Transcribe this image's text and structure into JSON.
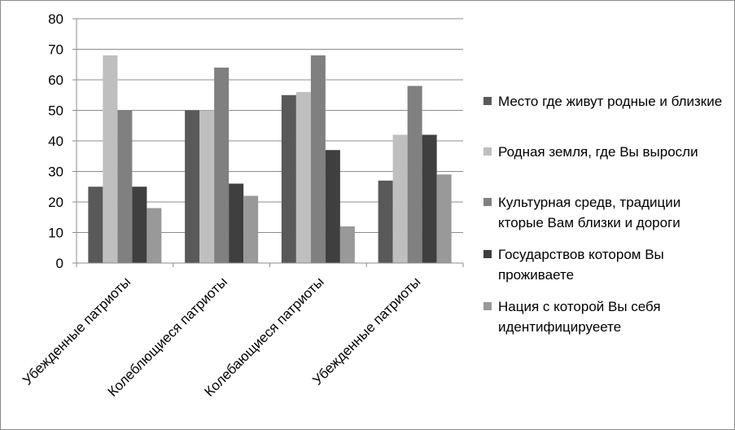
{
  "chart_data": {
    "type": "bar",
    "categories": [
      "Убежденные патриоты",
      "Колеблющиеся патриоты",
      "Колебающиеся патриоты",
      "Убежденные патриоты"
    ],
    "series": [
      {
        "name": "Место где живут родные и близкие",
        "values": [
          25,
          50,
          55,
          27
        ],
        "color": "#595959"
      },
      {
        "name": "Родная земля, где Вы выросли",
        "values": [
          68,
          50,
          56,
          42
        ],
        "color": "#bfbfbf"
      },
      {
        "name": "Культурная средв, традиции кторые Вам близки и дороги",
        "values": [
          50,
          64,
          68,
          58
        ],
        "color": "#808080"
      },
      {
        "name": "Государствов котором Вы проживаете",
        "values": [
          25,
          26,
          37,
          42
        ],
        "color": "#3f3f3f"
      },
      {
        "name": "Нация с которой Вы себя идентифицируеете",
        "values": [
          18,
          22,
          12,
          29
        ],
        "color": "#999999"
      }
    ],
    "yticks": [
      "0",
      "10",
      "20",
      "30",
      "40",
      "50",
      "60",
      "70",
      "80"
    ],
    "ylim": [
      0,
      80
    ],
    "grid": true,
    "legend_position": "right"
  }
}
